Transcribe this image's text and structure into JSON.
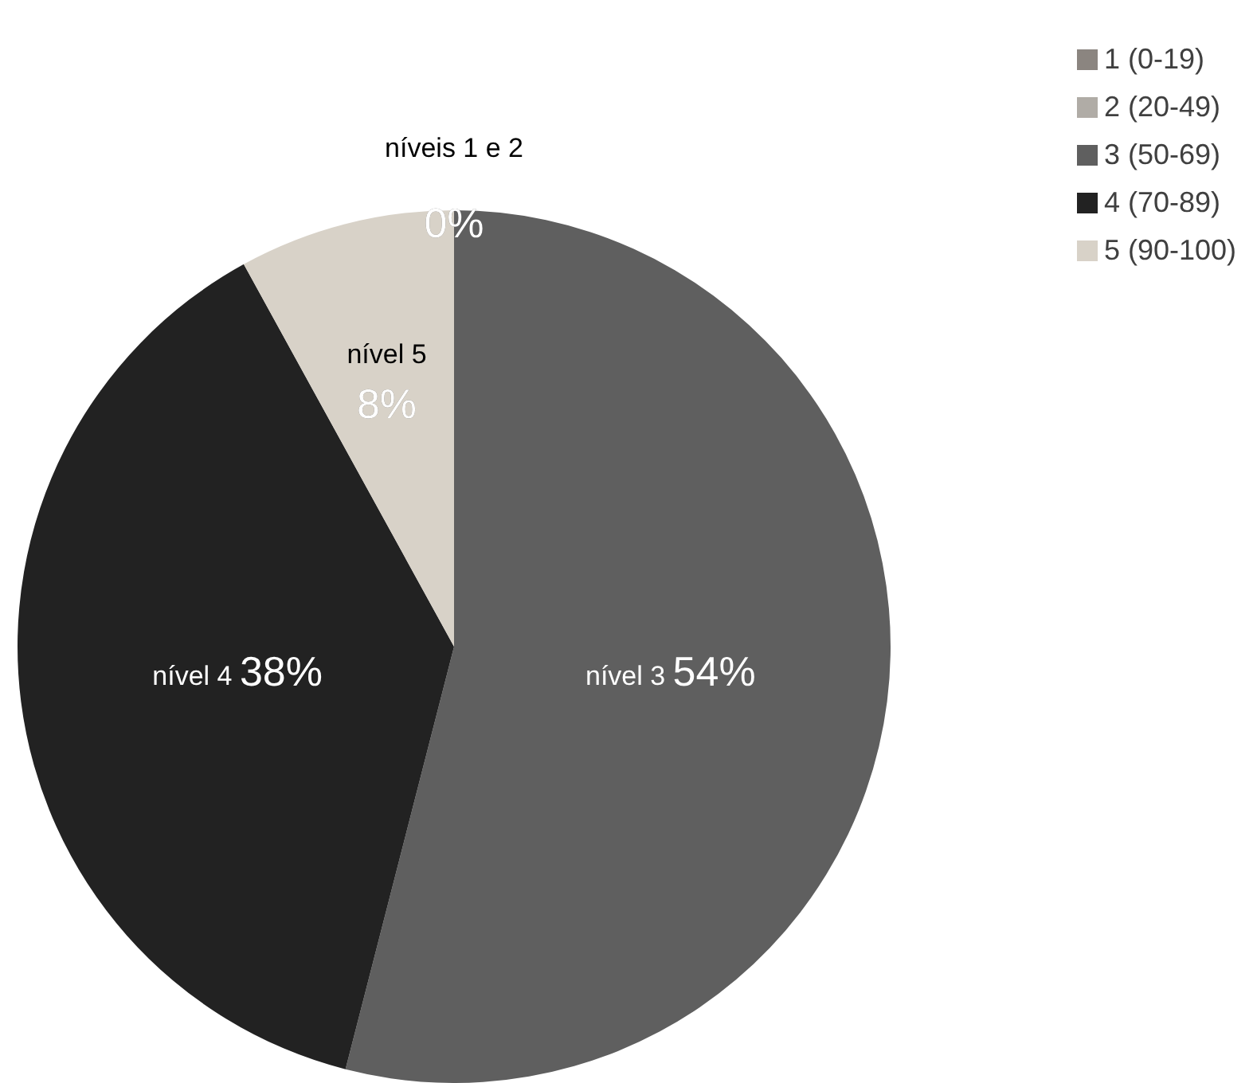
{
  "chart_data": {
    "type": "pie",
    "categories": [
      "1 (0-19)",
      "2 (20-49)",
      "3 (50-69)",
      "4 (70-89)",
      "5 (90-100)"
    ],
    "values": [
      0,
      0,
      54,
      38,
      8
    ],
    "colors": [
      "#8b8580",
      "#b0aca6",
      "#5f5f5f",
      "#222222",
      "#d8d2c8"
    ],
    "value_labels": [
      "níveis 1 e 2 0%",
      null,
      "nível 3 54%",
      "nível 4 38%",
      "nível 5 8%"
    ],
    "legend": "top right"
  }
}
